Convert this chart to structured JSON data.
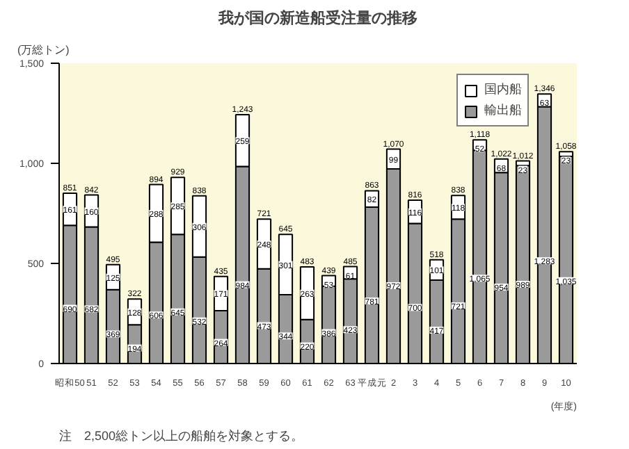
{
  "chart_data": {
    "type": "bar",
    "stacked": true,
    "title": "我が国の新造船受注量の推移",
    "ylabel": "(万総トン)",
    "xlabel": "(年度)",
    "categories": [
      "昭和50",
      "51",
      "52",
      "53",
      "54",
      "55",
      "56",
      "57",
      "58",
      "59",
      "60",
      "61",
      "62",
      "63",
      "平成元",
      "2",
      "3",
      "4",
      "5",
      "6",
      "7",
      "8",
      "9",
      "10"
    ],
    "series": [
      {
        "name": "輸出船",
        "color": "#9a9a9a",
        "values": [
          690,
          682,
          369,
          194,
          606,
          645,
          532,
          264,
          984,
          473,
          344,
          220,
          386,
          423,
          781,
          972,
          700,
          417,
          721,
          1065,
          954,
          989,
          1283,
          1035
        ],
        "value_labels": [
          "690",
          "682",
          "369",
          "194",
          "606",
          "645",
          "532",
          "264",
          "984",
          "473",
          "344",
          "220",
          "386",
          "423",
          "781",
          "972",
          "700",
          "417",
          "721",
          "1,065",
          "954",
          "989",
          "1,283",
          "1,035"
        ]
      },
      {
        "name": "国内船",
        "color": "#ffffff",
        "values": [
          161,
          160,
          125,
          128,
          288,
          285,
          306,
          171,
          259,
          248,
          301,
          263,
          53,
          61,
          82,
          99,
          116,
          101,
          118,
          52,
          68,
          23,
          63,
          23
        ],
        "value_labels": [
          "161",
          "160",
          "125",
          "128",
          "288",
          "285",
          "306",
          "171",
          "259",
          "248",
          "301",
          "263",
          "53",
          "61",
          "82",
          "99",
          "116",
          "101",
          "118",
          "52",
          "68",
          "23",
          "63",
          "23"
        ]
      }
    ],
    "totals": [
      "851",
      "842",
      "495",
      "322",
      "894",
      "929",
      "838",
      "435",
      "1,243",
      "721",
      "645",
      "483",
      "439",
      "485",
      "863",
      "1,070",
      "816",
      "518",
      "838",
      "1,118",
      "1,022",
      "1,012",
      "1,346",
      "1,058"
    ],
    "ylim": [
      0,
      1500
    ],
    "yticks": [
      0,
      500,
      {
        "value": 1000,
        "label": "1,000"
      },
      {
        "value": 1500,
        "label": "1,500"
      }
    ],
    "legend": "top right",
    "grid": false,
    "annotations": [
      "注　2,500総トン以上の船舶を対象とする。"
    ]
  }
}
